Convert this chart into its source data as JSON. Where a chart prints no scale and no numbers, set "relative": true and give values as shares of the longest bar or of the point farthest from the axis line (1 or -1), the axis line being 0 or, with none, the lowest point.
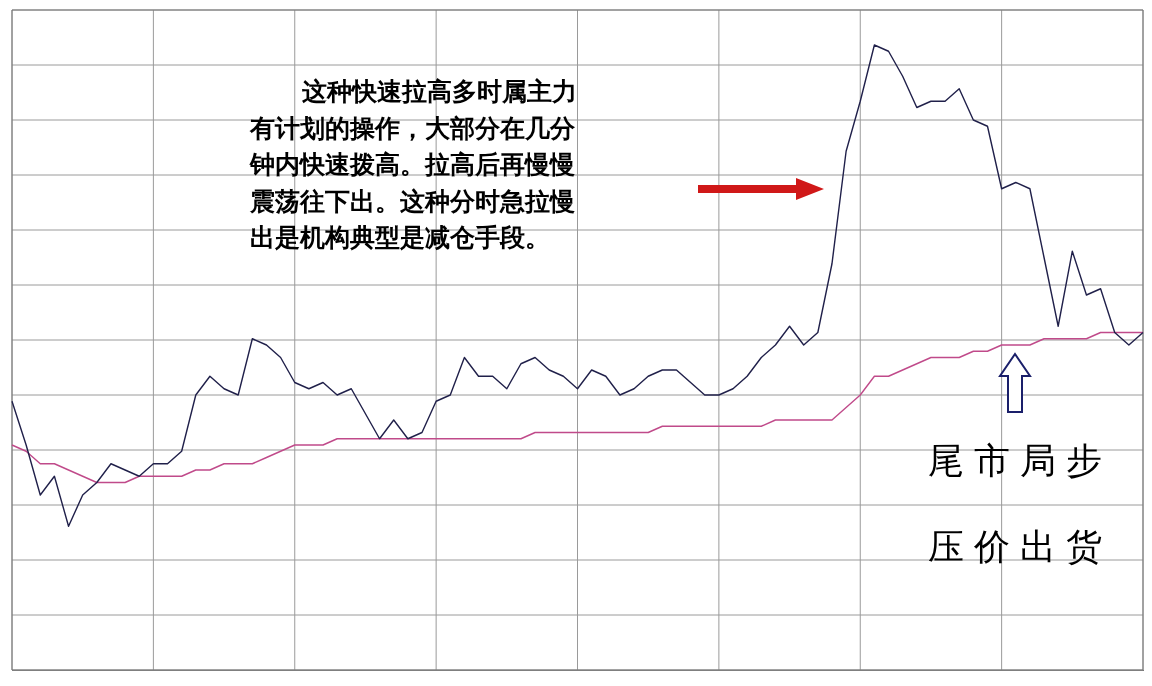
{
  "chart_data": {
    "type": "line",
    "relative": true,
    "grid": true,
    "legend": false,
    "marker": "none",
    "line_style": "solid",
    "categories": [
      null,
      null,
      null,
      null,
      null,
      null,
      null,
      null,
      null,
      null,
      null,
      null,
      null,
      null,
      null,
      null,
      null,
      null,
      null,
      null,
      null,
      null,
      null,
      null,
      null,
      null,
      null,
      null,
      null,
      null,
      null,
      null,
      null,
      null,
      null,
      null,
      null,
      null,
      null,
      null,
      null,
      null,
      null,
      null,
      null,
      null,
      null,
      null,
      null,
      null,
      null,
      null,
      null,
      null,
      null,
      null,
      null,
      null,
      null,
      null,
      null,
      null,
      null,
      null,
      null,
      null,
      null,
      null,
      null,
      null,
      null,
      null,
      null,
      null,
      null,
      null,
      null,
      null,
      null,
      null,
      null
    ],
    "series": [
      {
        "color": "#20204a",
        "values": [
          0.43,
          0.36,
          0.28,
          0.31,
          0.23,
          0.28,
          0.3,
          0.33,
          0.32,
          0.31,
          0.33,
          0.33,
          0.35,
          0.44,
          0.47,
          0.45,
          0.44,
          0.53,
          0.52,
          0.5,
          0.46,
          0.45,
          0.46,
          0.44,
          0.45,
          0.41,
          0.37,
          0.4,
          0.37,
          0.38,
          0.43,
          0.44,
          0.5,
          0.47,
          0.47,
          0.45,
          0.49,
          0.5,
          0.48,
          0.47,
          0.45,
          0.48,
          0.47,
          0.44,
          0.45,
          0.47,
          0.48,
          0.48,
          0.46,
          0.44,
          0.44,
          0.45,
          0.47,
          0.5,
          0.52,
          0.55,
          0.52,
          0.54,
          0.65,
          0.83,
          0.91,
          1,
          0.99,
          0.95,
          0.9,
          0.91,
          0.91,
          0.93,
          0.88,
          0.87,
          0.77,
          0.78,
          0.77,
          0.66,
          0.55,
          0.67,
          0.6,
          0.61,
          0.54,
          0.52,
          0.54
        ]
      },
      {
        "color": "#c04a8a",
        "values": [
          0.36,
          0.35,
          0.33,
          0.33,
          0.32,
          0.31,
          0.3,
          0.3,
          0.3,
          0.31,
          0.31,
          0.31,
          0.31,
          0.32,
          0.32,
          0.33,
          0.33,
          0.33,
          0.34,
          0.35,
          0.36,
          0.36,
          0.36,
          0.37,
          0.37,
          0.37,
          0.37,
          0.37,
          0.37,
          0.37,
          0.37,
          0.37,
          0.37,
          0.37,
          0.37,
          0.37,
          0.37,
          0.38,
          0.38,
          0.38,
          0.38,
          0.38,
          0.38,
          0.38,
          0.38,
          0.38,
          0.39,
          0.39,
          0.39,
          0.39,
          0.39,
          0.39,
          0.39,
          0.39,
          0.4,
          0.4,
          0.4,
          0.4,
          0.4,
          0.42,
          0.44,
          0.47,
          0.47,
          0.48,
          0.49,
          0.5,
          0.5,
          0.5,
          0.51,
          0.51,
          0.52,
          0.52,
          0.52,
          0.53,
          0.53,
          0.53,
          0.53,
          0.54,
          0.54,
          0.54,
          0.54
        ]
      }
    ],
    "annotations": [
      "这种快速拉高多时属主力有计划的操作，大部分在几分钟内快速拨高。拉高后再慢慢震荡往下出。这种分时急拉慢出是机构典型是减仓手段。",
      "尾市局步压价出货"
    ]
  }
}
